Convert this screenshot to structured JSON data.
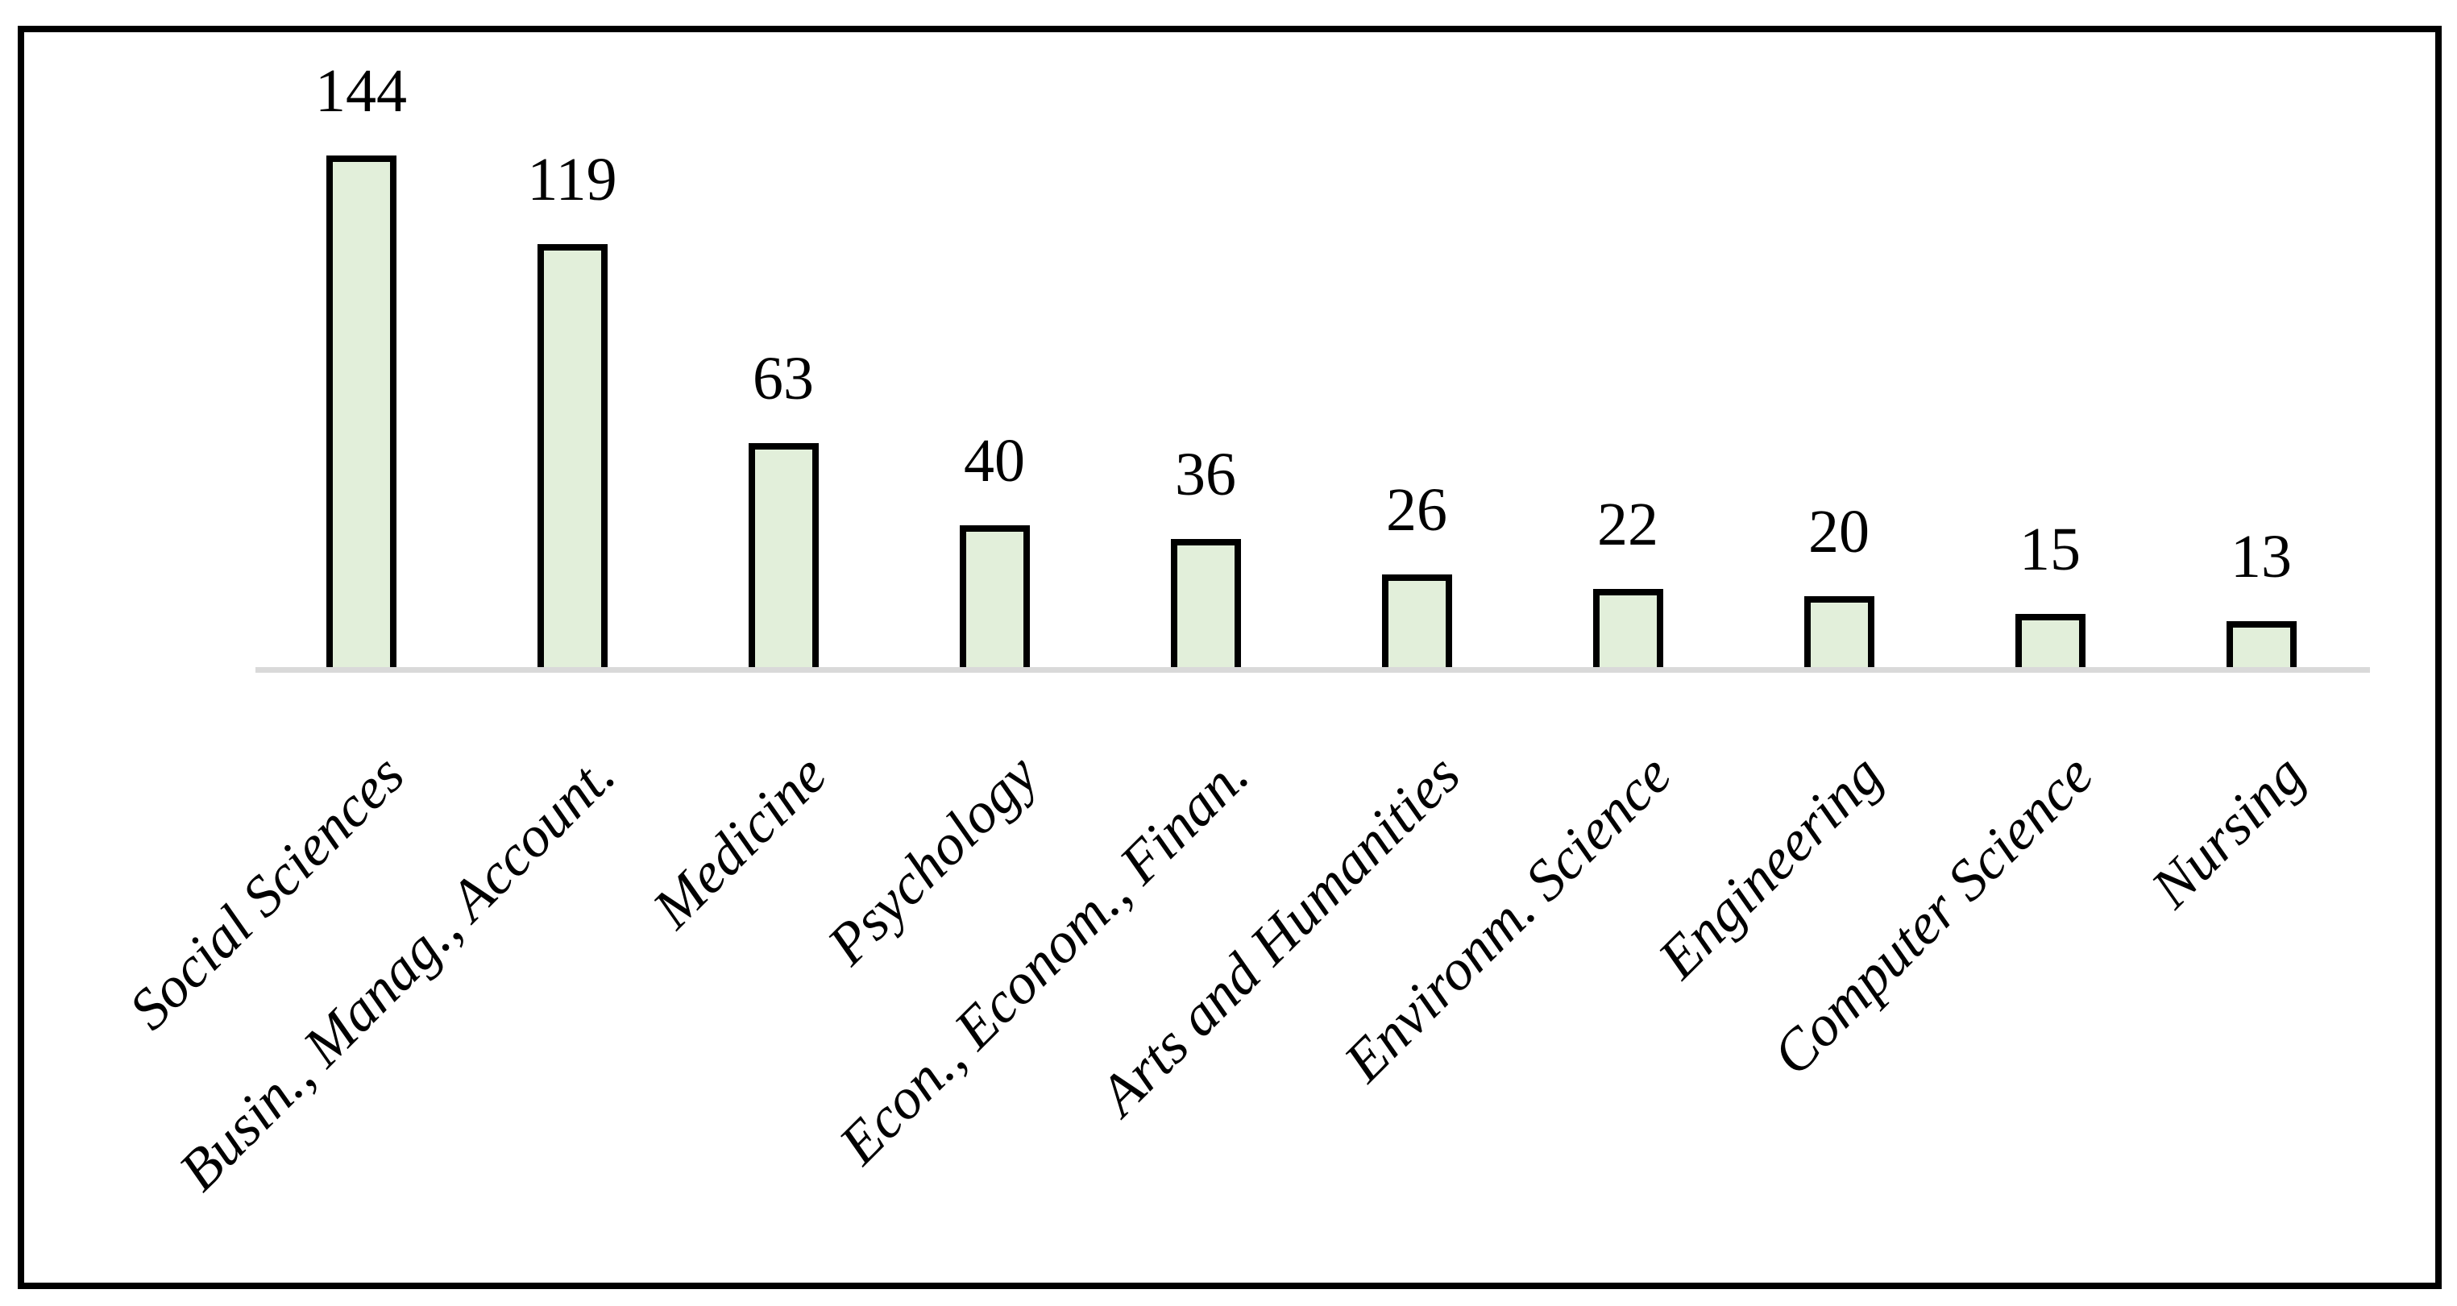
{
  "chart_data": {
    "type": "bar",
    "title": "",
    "xlabel": "",
    "ylabel": "",
    "categories": [
      "Social Sciences",
      "Busin., Manag., Account.",
      "Medicine",
      "Psychology",
      "Econ., Econom., Finan.",
      "Arts and Humanities",
      "Environm. Science",
      "Engineering",
      "Computer Science",
      "Nursing"
    ],
    "values": [
      144,
      119,
      63,
      40,
      36,
      26,
      22,
      20,
      15,
      13
    ],
    "data_labels": [
      "144",
      "119",
      "63",
      "40",
      "36",
      "26",
      "22",
      "20",
      "15",
      "13"
    ],
    "ylim": [
      0,
      160
    ],
    "grid": "off",
    "legend": "none",
    "x_label_rotation_deg": 45,
    "bar_fill_color": "#e2efda",
    "bar_border_color": "#000000",
    "axis_line_color": "#d9d9d9",
    "frame_border_color": "#000000",
    "text_color": "#000000"
  }
}
